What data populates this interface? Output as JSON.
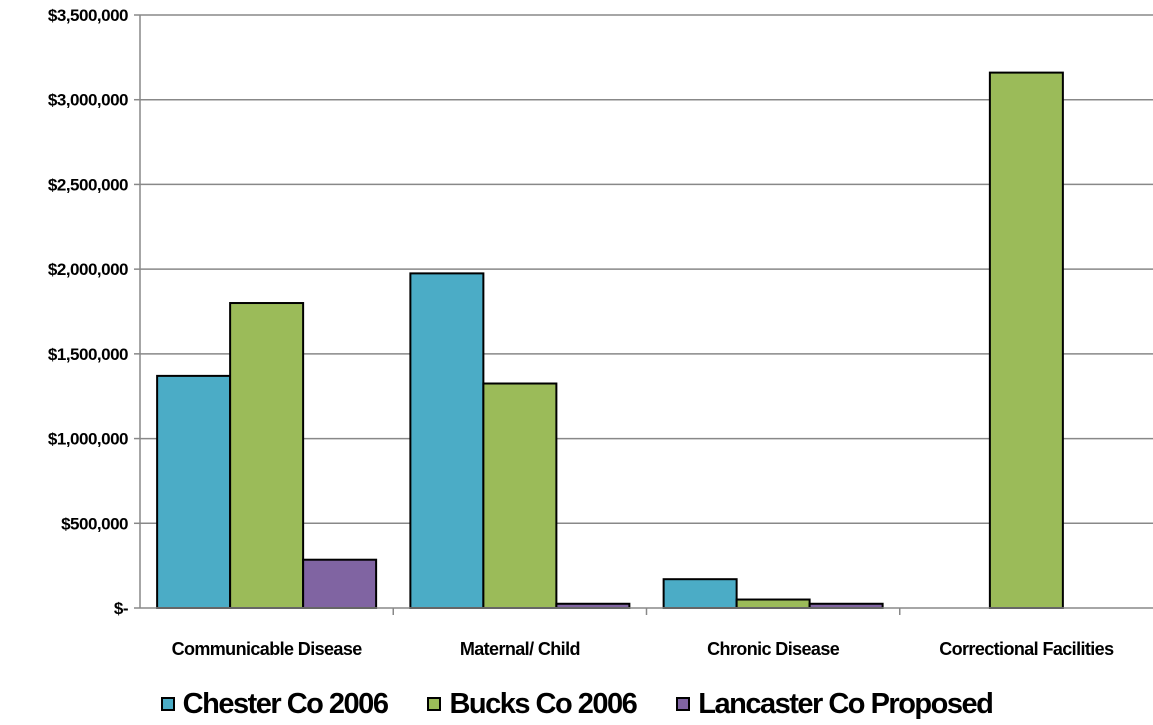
{
  "chart_data": {
    "type": "bar",
    "categories": [
      "Communicable  Disease",
      "Maternal/ Child",
      "Chronic Disease",
      "Correctional Facilities"
    ],
    "series": [
      {
        "name": "Chester Co 2006",
        "color": "#4BACC6",
        "values": [
          1370000,
          1975000,
          170000,
          0
        ]
      },
      {
        "name": "Bucks Co 2006",
        "color": "#9BBB59",
        "values": [
          1800000,
          1325000,
          50000,
          3160000
        ]
      },
      {
        "name": "Lancaster Co Proposed",
        "color": "#8064A2",
        "values": [
          285000,
          25000,
          25000,
          0
        ]
      }
    ],
    "ylim": [
      0,
      3500000
    ],
    "yticks": [
      0,
      500000,
      1000000,
      1500000,
      2000000,
      2500000,
      3000000,
      3500000
    ],
    "ytick_labels": [
      "$-",
      "$500,000",
      "$1,000,000",
      "$1,500,000",
      "$2,000,000",
      "$2,500,000",
      "$3,000,000",
      "$3,500,000"
    ],
    "grid": true,
    "legend_position": "bottom"
  }
}
